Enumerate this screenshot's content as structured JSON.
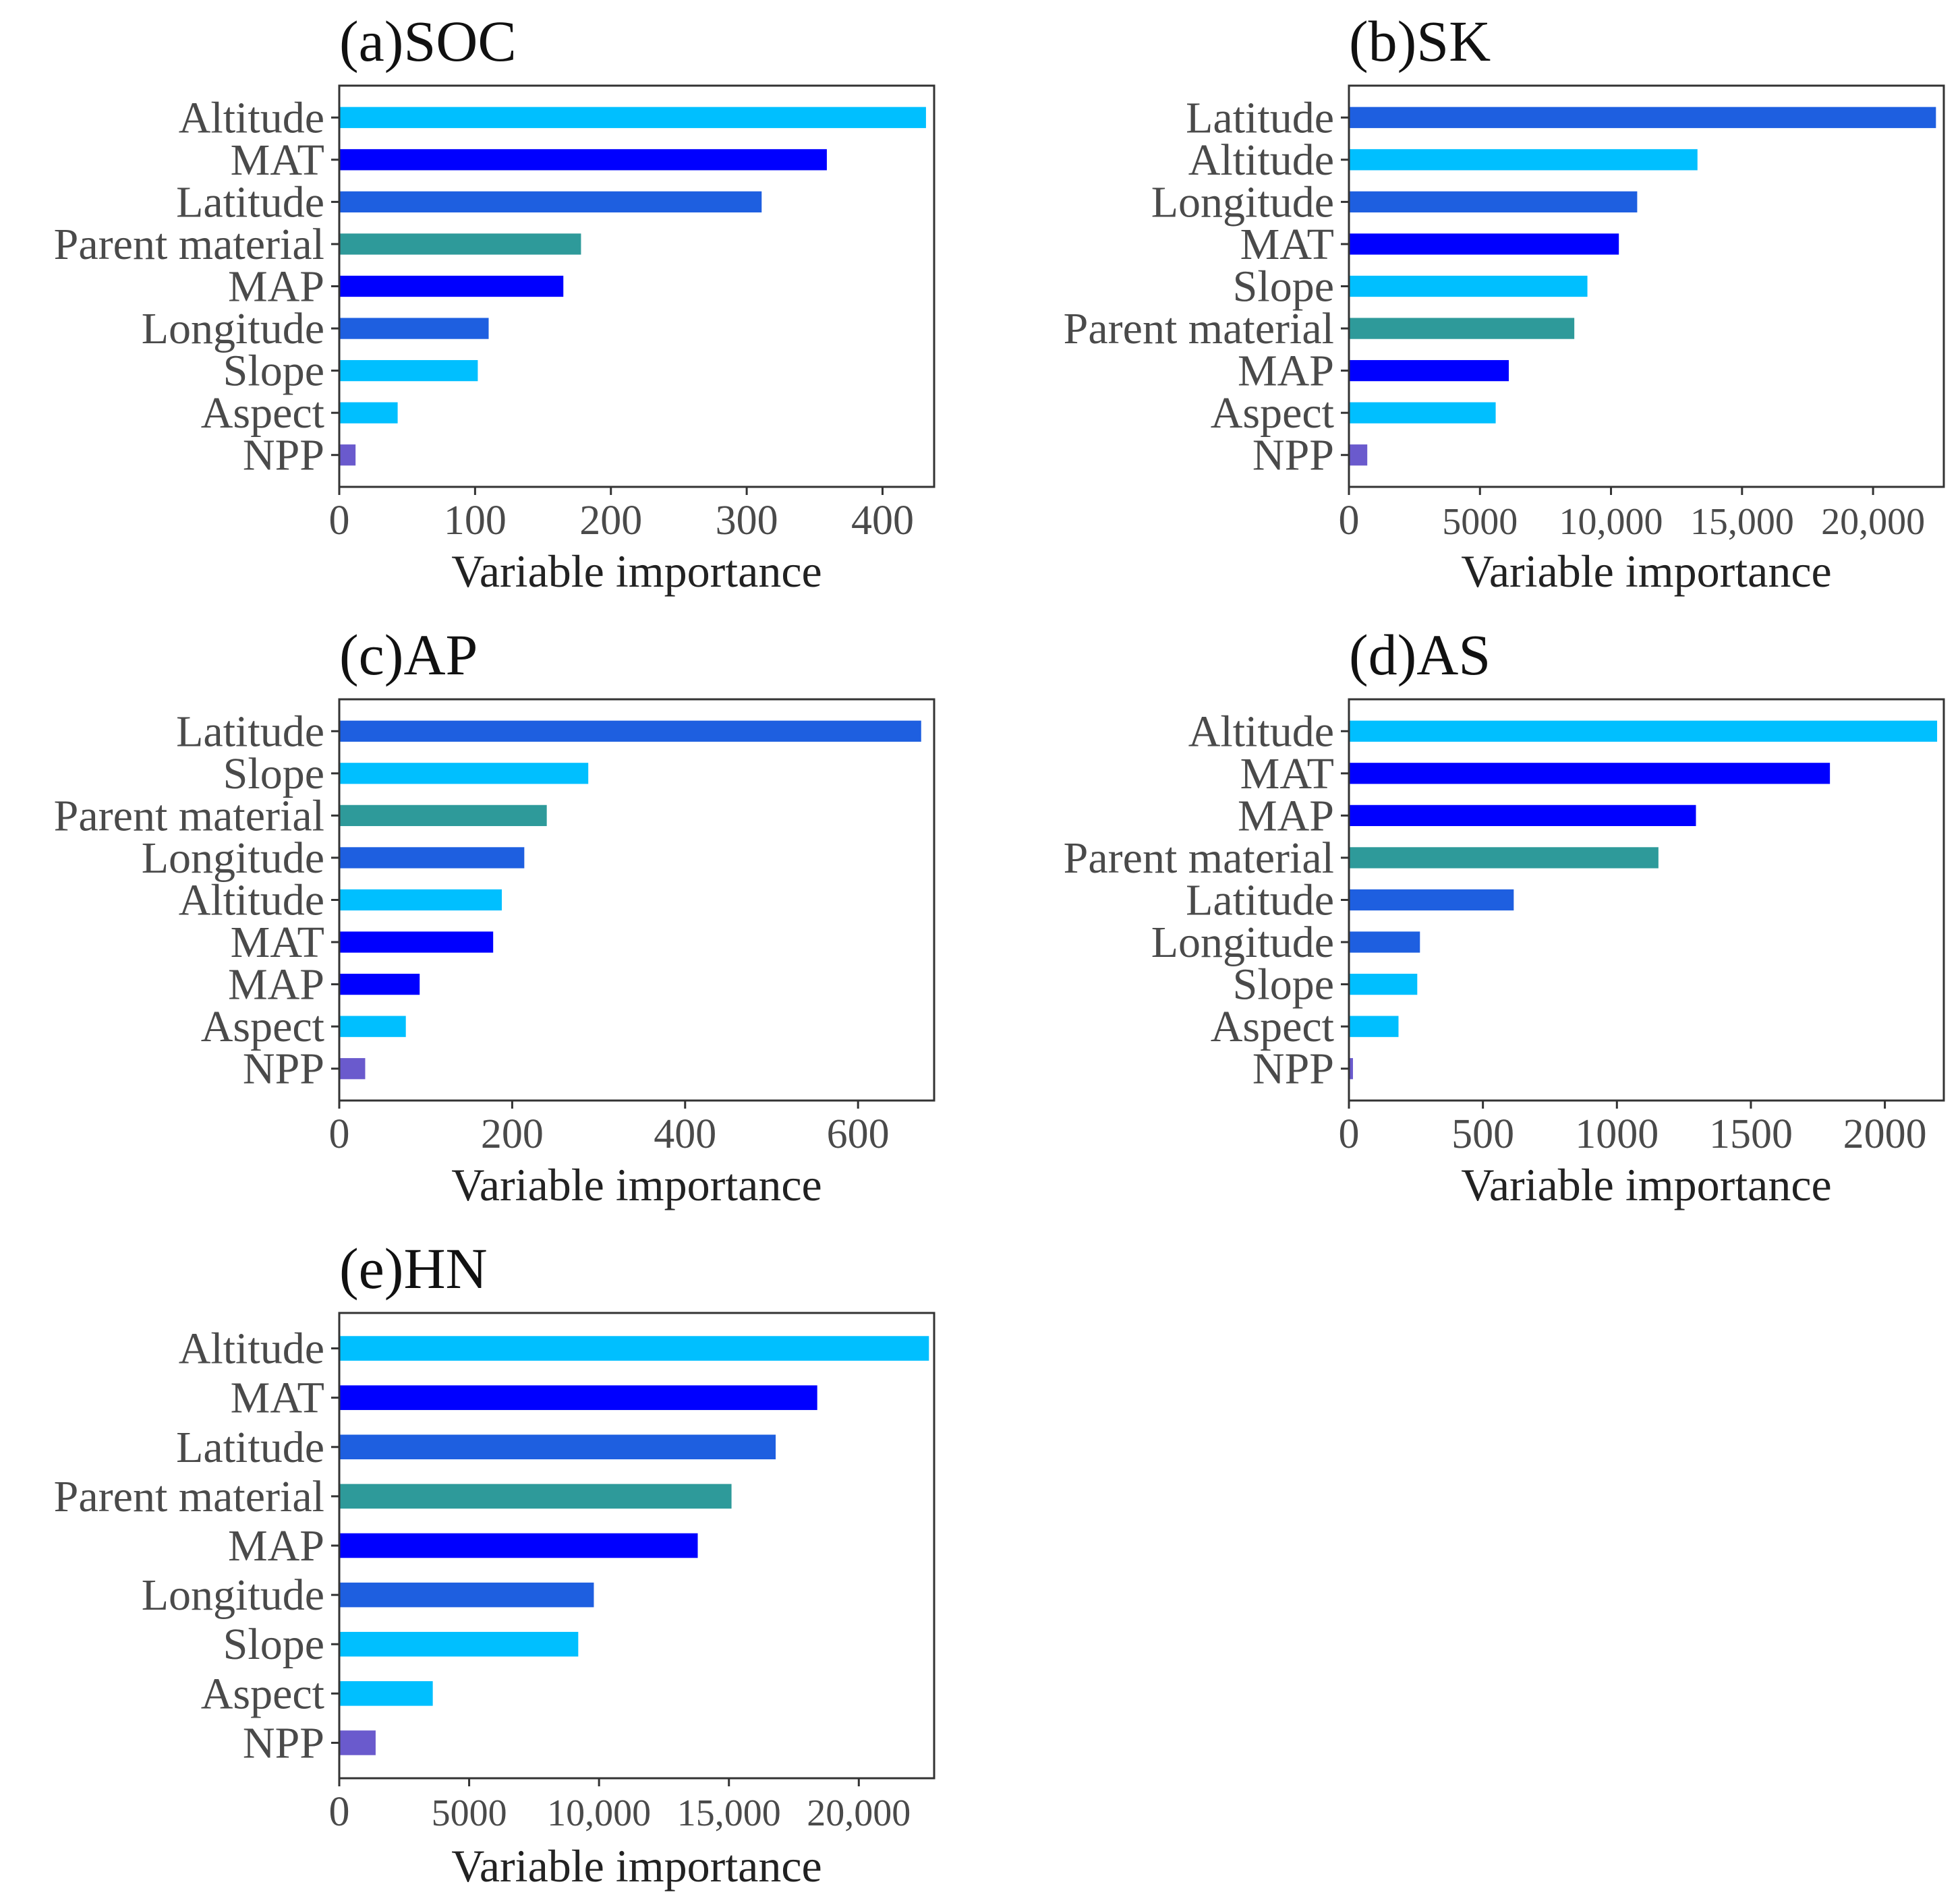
{
  "colors": {
    "Altitude": "#00BFFF",
    "Slope": "#00BFFF",
    "Aspect": "#00BFFF",
    "MAT": "#0000FF",
    "MAP": "#0000FF",
    "Latitude": "#1E5FE0",
    "Longitude": "#1E5FE0",
    "Parent material": "#2E9A9A",
    "NPP": "#6A5ACD"
  },
  "chart_data": [
    {
      "id": "a",
      "type": "bar",
      "orientation": "horizontal",
      "title": "(a)SOC",
      "xlabel": "Variable importance",
      "ylabel": "",
      "categories": [
        "Altitude",
        "MAT",
        "Latitude",
        "Parent material",
        "MAP",
        "Longitude",
        "Slope",
        "Aspect",
        "NPP"
      ],
      "values": [
        432,
        359,
        311,
        178,
        165,
        110,
        102,
        43,
        12
      ],
      "xlim": [
        0,
        438
      ],
      "xticks": [
        0,
        100,
        200,
        300,
        400
      ],
      "xtick_labels": [
        "0",
        "100",
        "200",
        "300",
        "400"
      ],
      "grid": false
    },
    {
      "id": "b",
      "type": "bar",
      "orientation": "horizontal",
      "title": "(b)SK",
      "xlabel": "Variable importance",
      "ylabel": "",
      "categories": [
        "Latitude",
        "Altitude",
        "Longitude",
        "MAT",
        "Slope",
        "Parent material",
        "MAP",
        "Aspect",
        "NPP"
      ],
      "values": [
        22400,
        13300,
        11000,
        10300,
        9100,
        8600,
        6100,
        5600,
        700
      ],
      "xlim": [
        0,
        22700
      ],
      "xticks": [
        0,
        5000,
        10000,
        15000,
        20000
      ],
      "xtick_labels": [
        "0",
        "5000",
        "10,000",
        "15,000",
        "20,000"
      ],
      "grid": false
    },
    {
      "id": "c",
      "type": "bar",
      "orientation": "horizontal",
      "title": "(c)AP",
      "xlabel": "Variable importance",
      "ylabel": "",
      "categories": [
        "Latitude",
        "Slope",
        "Parent material",
        "Longitude",
        "Altitude",
        "MAT",
        "MAP",
        "Aspect",
        "NPP"
      ],
      "values": [
        673,
        288,
        240,
        214,
        188,
        178,
        93,
        77,
        30
      ],
      "xlim": [
        0,
        688
      ],
      "xticks": [
        0,
        200,
        400,
        600
      ],
      "xtick_labels": [
        "0",
        "200",
        "400",
        "600"
      ],
      "grid": false
    },
    {
      "id": "d",
      "type": "bar",
      "orientation": "horizontal",
      "title": "(d)AS",
      "xlabel": "Variable importance",
      "ylabel": "",
      "categories": [
        "Altitude",
        "MAT",
        "MAP",
        "Parent material",
        "Latitude",
        "Longitude",
        "Slope",
        "Aspect",
        "NPP"
      ],
      "values": [
        2195,
        1795,
        1295,
        1155,
        615,
        265,
        255,
        185,
        15
      ],
      "xlim": [
        0,
        2220
      ],
      "xticks": [
        0,
        500,
        1000,
        1500,
        2000
      ],
      "xtick_labels": [
        "0",
        "500",
        "1000",
        "1500",
        "2000"
      ],
      "grid": false
    },
    {
      "id": "e",
      "type": "bar",
      "orientation": "horizontal",
      "title": "(e)HN",
      "xlabel": "Variable importance",
      "ylabel": "",
      "categories": [
        "Altitude",
        "MAT",
        "Latitude",
        "Parent material",
        "MAP",
        "Longitude",
        "Slope",
        "Aspect",
        "NPP"
      ],
      "values": [
        22700,
        18400,
        16800,
        15100,
        13800,
        9800,
        9200,
        3600,
        1400
      ],
      "xlim": [
        0,
        22900
      ],
      "xticks": [
        0,
        5000,
        10000,
        15000,
        20000
      ],
      "xtick_labels": [
        "0",
        "5000",
        "10,000",
        "15,000",
        "20,000"
      ],
      "grid": false
    }
  ]
}
